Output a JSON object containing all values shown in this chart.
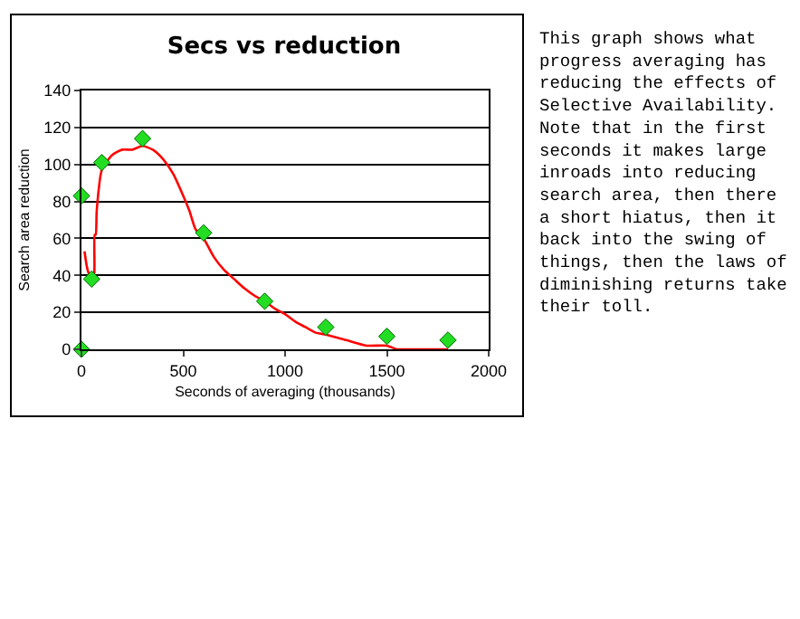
{
  "chart_data": {
    "type": "scatter",
    "title": "Secs vs reduction",
    "xlabel": "Seconds of averaging (thousands)",
    "ylabel": "Search area reduction",
    "xlim": [
      0,
      2000
    ],
    "xticks": [
      0,
      500,
      1000,
      1500,
      2000
    ],
    "ylim": [
      0,
      140
    ],
    "yticks": [
      0,
      20,
      40,
      60,
      80,
      100,
      120,
      140
    ],
    "grid": "y",
    "series": [
      {
        "type": "line",
        "color": "#ff0000",
        "marker": "none",
        "line_style": "solid",
        "x": [
          15,
          30,
          50,
          62,
          65,
          70,
          75,
          100,
          150,
          200,
          250,
          300,
          350,
          400,
          450,
          500,
          530,
          560,
          600,
          650,
          700,
          750,
          800,
          850,
          900,
          950,
          1000,
          1050,
          1100,
          1150,
          1200,
          1300,
          1400,
          1500,
          1550,
          1600,
          1700,
          1750,
          1800
        ],
        "values": [
          53,
          43,
          38,
          40,
          62,
          62,
          75,
          97,
          105,
          108,
          108,
          110,
          108,
          103,
          95,
          83,
          75,
          65,
          60,
          50,
          43,
          38,
          33,
          29,
          26,
          22,
          19,
          15,
          12,
          9,
          8,
          5,
          2,
          2,
          0,
          0,
          0,
          0,
          0
        ]
      },
      {
        "color": "#22dd22",
        "marker": "diamond",
        "x": [
          0,
          0,
          50,
          100,
          300,
          600,
          900,
          1200,
          1500,
          1800
        ],
        "values": [
          0,
          83,
          38,
          101,
          114,
          63,
          26,
          12,
          7,
          5
        ]
      }
    ],
    "annotations": [
      "This graph shows what progress averaging has reducing the effects of Selective Availability. Note that in the first seconds it makes large inroads into reducing search area, then there a short hiatus, then it back into the swing of things, then the laws of diminishing returns take their toll."
    ]
  }
}
